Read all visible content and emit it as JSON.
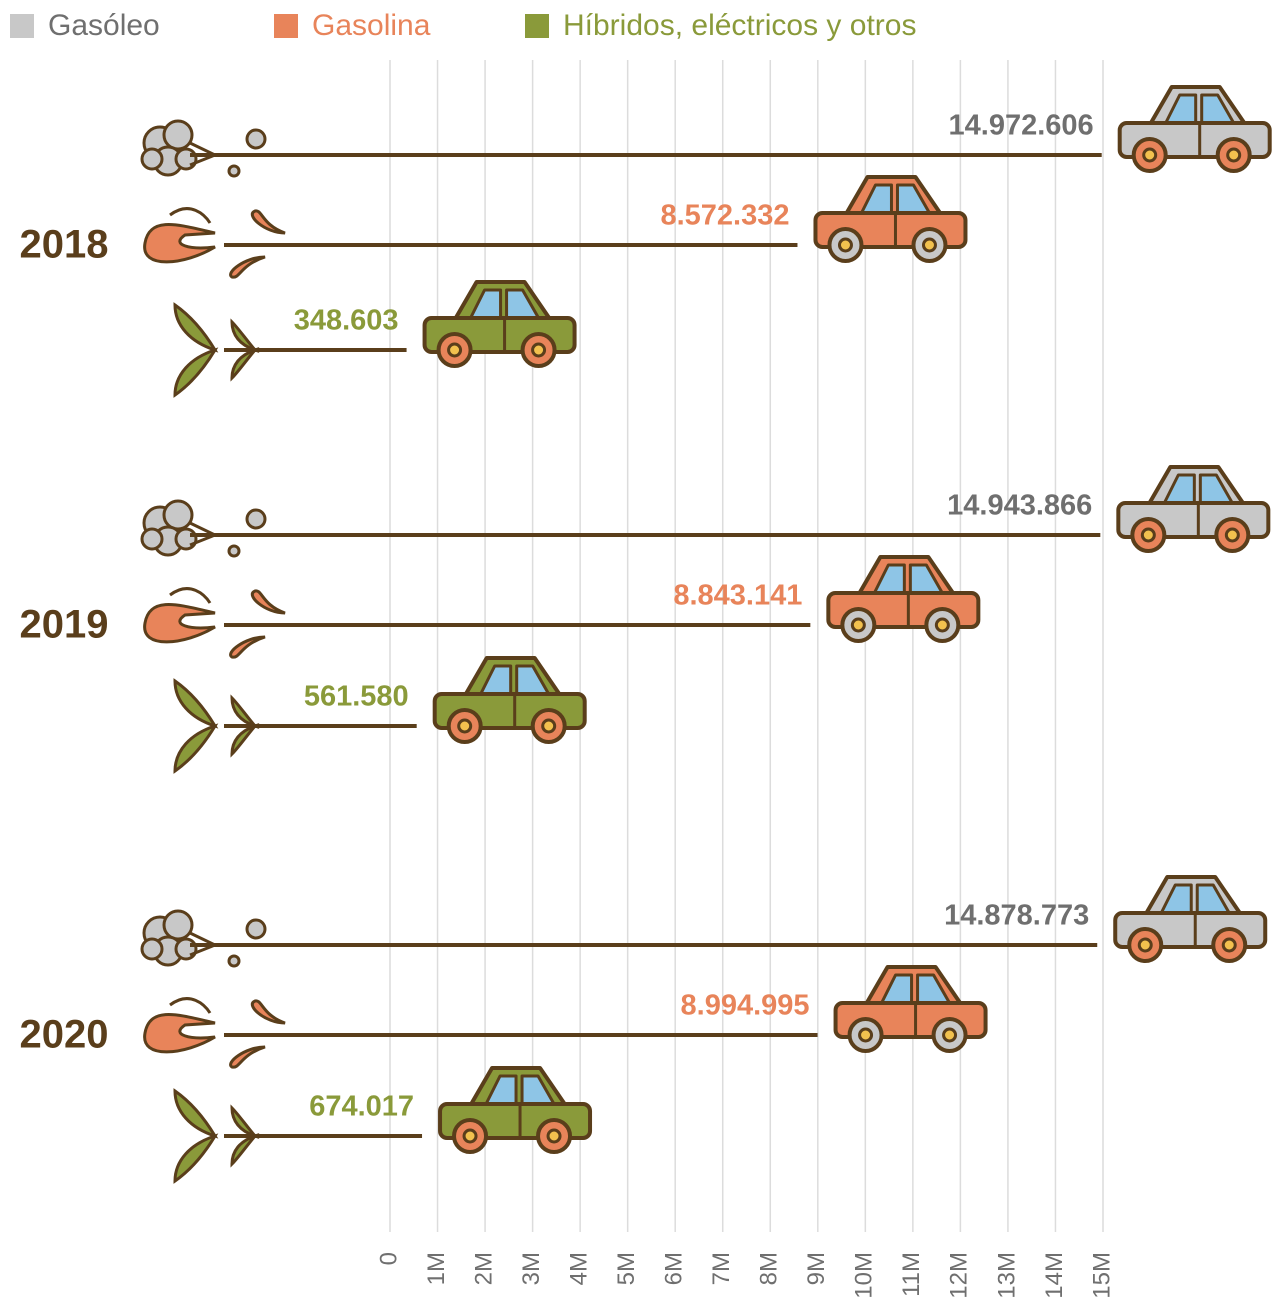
{
  "chart_data": {
    "type": "pictorial-bar",
    "categories": [
      "2018",
      "2019",
      "2020"
    ],
    "series": [
      {
        "name": "Gasóleo",
        "color": "#c8c8c8",
        "label_color": "#6f6f6f",
        "values": [
          14972606,
          14943866,
          14878773
        ],
        "value_labels": [
          "14.972.606",
          "14.943.866",
          "14.878.773"
        ]
      },
      {
        "name": "Gasolina",
        "color": "#e8845a",
        "label_color": "#e8845a",
        "values": [
          8572332,
          8843141,
          8994995
        ],
        "value_labels": [
          "8.572.332",
          "8.843.141",
          "8.994.995"
        ]
      },
      {
        "name": "Híbridos, eléctricos y otros",
        "color": "#8a9a3a",
        "label_color": "#8a9a3a",
        "values": [
          348603,
          561580,
          674017
        ],
        "value_labels": [
          "348.603",
          "561.580",
          "674.017"
        ]
      }
    ],
    "xlim": [
      0,
      15000000
    ],
    "xticks": [
      0,
      {
        "value": 1000000,
        "label": "1M"
      },
      {
        "value": 2000000,
        "label": "2M"
      },
      {
        "value": 3000000,
        "label": "3M"
      },
      {
        "value": 4000000,
        "label": "4M"
      },
      {
        "value": 5000000,
        "label": "5M"
      },
      {
        "value": 6000000,
        "label": "6M"
      },
      {
        "value": 7000000,
        "label": "7M"
      },
      {
        "value": 8000000,
        "label": "8M"
      },
      {
        "value": 9000000,
        "label": "9M"
      },
      {
        "value": 10000000,
        "label": "10M"
      },
      {
        "value": 11000000,
        "label": "11M"
      },
      {
        "value": 12000000,
        "label": "12M"
      },
      {
        "value": 13000000,
        "label": "13M"
      },
      {
        "value": 14000000,
        "label": "14M"
      },
      {
        "value": 15000000,
        "label": "15M"
      }
    ],
    "grid": true
  }
}
